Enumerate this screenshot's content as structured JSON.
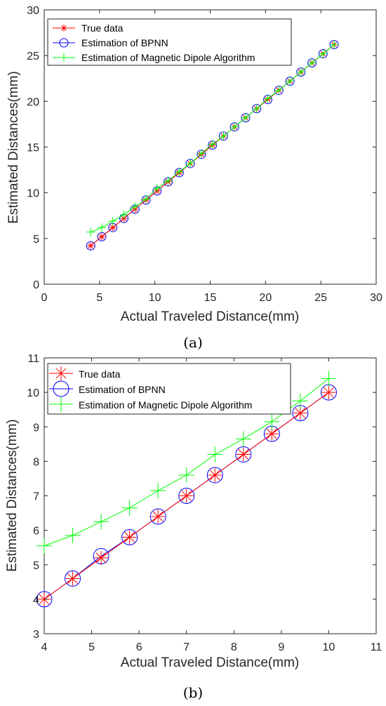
{
  "colors": {
    "true_data": "#ff0000",
    "bpnn": "#0000ff",
    "magnetic": "#00ff00",
    "axis": "#262626"
  },
  "chart_data": [
    {
      "type": "line",
      "caption": "(a)",
      "xlabel": "Actual Traveled Distance(mm)",
      "ylabel": "Estimated Distances(mm)",
      "xlim": [
        0,
        30
      ],
      "ylim": [
        0,
        30
      ],
      "xticks": [
        0,
        5,
        10,
        15,
        20,
        25,
        30
      ],
      "yticks": [
        0,
        5,
        10,
        15,
        20,
        25,
        30
      ],
      "grid": false,
      "legend_position": "top-left",
      "series": [
        {
          "name": "True data",
          "marker": "asterisk",
          "color": "#ff0000",
          "x": [
            4.2,
            5.2,
            6.2,
            7.2,
            8.2,
            9.2,
            10.2,
            11.2,
            12.2,
            13.2,
            14.2,
            15.2,
            16.2,
            17.2,
            18.2,
            19.2,
            20.2,
            21.2,
            22.2,
            23.2,
            24.2,
            25.2,
            26.2
          ],
          "y": [
            4.2,
            5.2,
            6.2,
            7.2,
            8.2,
            9.2,
            10.2,
            11.2,
            12.2,
            13.2,
            14.2,
            15.2,
            16.2,
            17.2,
            18.2,
            19.2,
            20.2,
            21.2,
            22.2,
            23.2,
            24.2,
            25.2,
            26.2
          ]
        },
        {
          "name": "Estimation of BPNN",
          "marker": "circle",
          "color": "#0000ff",
          "x": [
            4.2,
            5.2,
            6.2,
            7.2,
            8.2,
            9.2,
            10.2,
            11.2,
            12.2,
            13.2,
            14.2,
            15.2,
            16.2,
            17.2,
            18.2,
            19.2,
            20.2,
            21.2,
            22.2,
            23.2,
            24.2,
            25.2,
            26.2
          ],
          "y": [
            4.2,
            5.2,
            6.2,
            7.2,
            8.2,
            9.2,
            10.2,
            11.2,
            12.2,
            13.2,
            14.2,
            15.2,
            16.2,
            17.2,
            18.2,
            19.2,
            20.2,
            21.2,
            22.2,
            23.2,
            24.2,
            25.2,
            26.2
          ]
        },
        {
          "name": "Estimation of Magnetic Dipole Algorithm",
          "marker": "plus",
          "color": "#00ff00",
          "x": [
            4.2,
            5.2,
            6.2,
            7.2,
            8.2,
            9.2,
            10.2,
            11.2,
            12.2,
            13.2,
            14.2,
            15.2,
            16.2,
            17.2,
            18.2,
            19.2,
            20.2,
            21.2,
            22.2,
            23.2,
            24.2,
            25.2,
            26.2
          ],
          "y": [
            5.7,
            6.2,
            6.9,
            7.6,
            8.5,
            9.3,
            10.5,
            11.3,
            12.3,
            13.2,
            14.3,
            15.3,
            16.2,
            17.2,
            18.2,
            19.2,
            20.3,
            21.2,
            22.2,
            23.2,
            24.2,
            25.2,
            26.2
          ]
        }
      ]
    },
    {
      "type": "line",
      "caption": "(b)",
      "xlabel": "Actual Traveled Distance(mm)",
      "ylabel": "Estimated Distances(mm)",
      "xlim": [
        4,
        11
      ],
      "ylim": [
        3,
        11
      ],
      "xticks": [
        4,
        5,
        6,
        7,
        8,
        9,
        10,
        11
      ],
      "yticks": [
        3,
        4,
        5,
        6,
        7,
        8,
        9,
        10,
        11
      ],
      "grid": false,
      "legend_position": "top-left",
      "series": [
        {
          "name": "True data",
          "marker": "asterisk",
          "color": "#ff0000",
          "x": [
            4.0,
            4.6,
            5.2,
            5.8,
            6.4,
            7.0,
            7.6,
            8.2,
            8.8,
            9.4,
            10.0
          ],
          "y": [
            4.0,
            4.6,
            5.2,
            5.8,
            6.4,
            7.0,
            7.6,
            8.2,
            8.8,
            9.4,
            10.0
          ]
        },
        {
          "name": "Estimation of BPNN",
          "marker": "circle",
          "color": "#0000ff",
          "x": [
            4.0,
            4.6,
            5.2,
            5.8,
            6.4,
            7.0,
            7.6,
            8.2,
            8.8,
            9.4,
            10.0
          ],
          "y": [
            4.0,
            4.6,
            5.25,
            5.8,
            6.4,
            7.0,
            7.6,
            8.2,
            8.8,
            9.4,
            10.0
          ]
        },
        {
          "name": "Estimation of Magnetic Dipole Algorithm",
          "marker": "plus",
          "color": "#00ff00",
          "x": [
            4.0,
            4.6,
            5.2,
            5.8,
            6.4,
            7.0,
            7.6,
            8.2,
            8.8,
            9.4,
            10.0
          ],
          "y": [
            5.55,
            5.85,
            6.25,
            6.65,
            7.15,
            7.6,
            8.2,
            8.65,
            9.15,
            9.75,
            10.4
          ]
        }
      ]
    }
  ]
}
